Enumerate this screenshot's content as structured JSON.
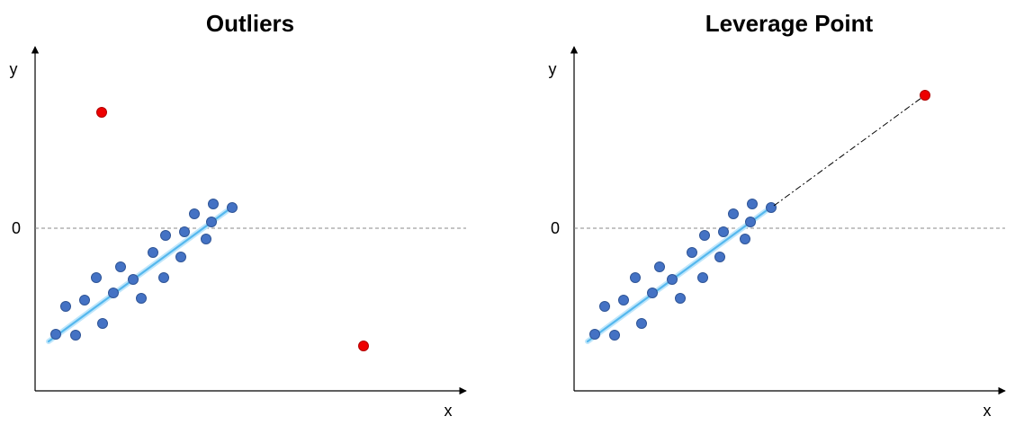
{
  "panels": [
    {
      "title": "Outliers",
      "y_label": "y",
      "x_label": "x",
      "zero_label": "0"
    },
    {
      "title": "Leverage Point",
      "y_label": "y",
      "x_label": "x",
      "zero_label": "0"
    }
  ]
}
